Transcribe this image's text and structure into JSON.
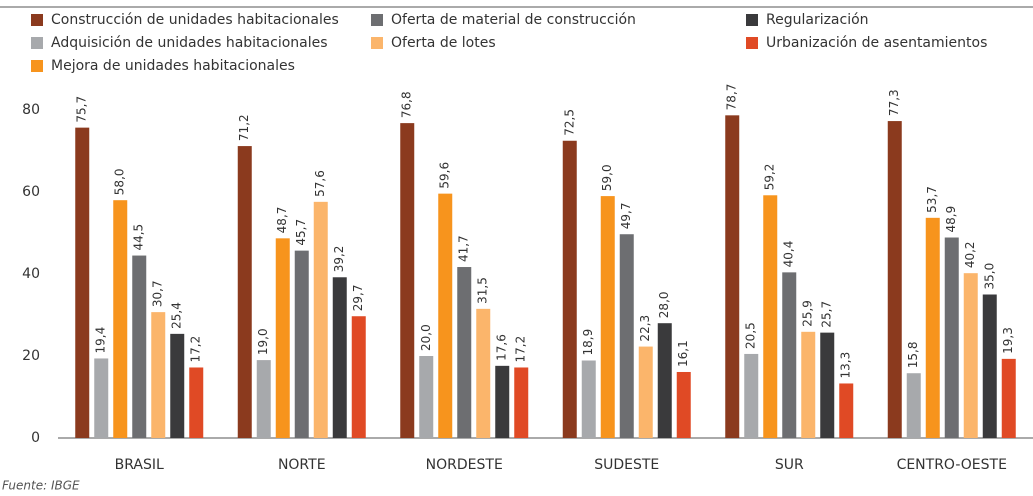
{
  "chart_data": {
    "type": "bar",
    "categories": [
      "BRASIL",
      "NORTE",
      "NORDESTE",
      "SUDESTE",
      "SUR",
      "CENTRO-OESTE"
    ],
    "series": [
      {
        "name": "Construcción de unidades habitacionales",
        "color": "#8b3a1e",
        "values": [
          75.7,
          71.2,
          76.8,
          72.5,
          78.7,
          77.3
        ],
        "value_labels": [
          "75,7",
          "71,2",
          "76,8",
          "72,5",
          "78,7",
          "77,3"
        ]
      },
      {
        "name": "Adquisición de unidades habitacionales",
        "color": "#a7a9ac",
        "values": [
          19.4,
          19.0,
          20.0,
          18.9,
          20.5,
          15.8
        ],
        "value_labels": [
          "19,4",
          "19,0",
          "20,0",
          "18,9",
          "20,5",
          "15,8"
        ]
      },
      {
        "name": "Mejora de unidades habitacionales",
        "color": "#f7941d",
        "values": [
          58.0,
          48.7,
          59.6,
          59.0,
          59.2,
          53.7
        ],
        "value_labels": [
          "58,0",
          "48,7",
          "59,6",
          "59,0",
          "59,2",
          "53,7"
        ]
      },
      {
        "name": "Oferta de material de construcción",
        "color": "#6d6e71",
        "values": [
          44.5,
          45.7,
          41.7,
          49.7,
          40.4,
          48.9
        ],
        "value_labels": [
          "44,5",
          "45,7",
          "41,7",
          "49,7",
          "40,4",
          "48,9"
        ]
      },
      {
        "name": "Oferta de lotes",
        "color": "#fbb56b",
        "values": [
          30.7,
          57.6,
          31.5,
          22.3,
          25.9,
          40.2
        ],
        "value_labels": [
          "30,7",
          "57,6",
          "31,5",
          "22,3",
          "25,9",
          "40,2"
        ]
      },
      {
        "name": "Regularización",
        "color": "#3a3a3c",
        "values": [
          25.4,
          39.2,
          17.6,
          28.0,
          25.7,
          35.0
        ],
        "value_labels": [
          "25,4",
          "39,2",
          "17,6",
          "28,0",
          "25,7",
          "35,0"
        ]
      },
      {
        "name": "Urbanización de asentamientos",
        "color": "#e04a25",
        "values": [
          17.2,
          29.7,
          17.2,
          16.1,
          13.3,
          19.3
        ],
        "value_labels": [
          "17,2",
          "29,7",
          "17,2",
          "16,1",
          "13,3",
          "19,3"
        ]
      }
    ],
    "ylim": [
      0,
      80
    ],
    "yticks": [
      0,
      20,
      40,
      60,
      80
    ],
    "grid": false
  },
  "source": "Fuente: IBGE"
}
